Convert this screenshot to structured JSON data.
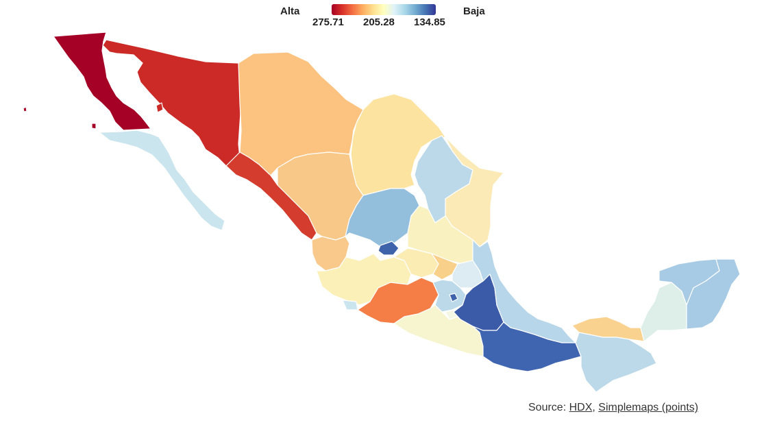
{
  "legend": {
    "high_label": "Alta",
    "low_label": "Baja",
    "ticks": [
      "275.71",
      "205.28",
      "134.85"
    ],
    "colors": [
      "#a50026",
      "#d73027",
      "#f46d43",
      "#fdae61",
      "#fee090",
      "#ffffbf",
      "#e0f3f8",
      "#abd9e9",
      "#74add1",
      "#4575b4",
      "#313695"
    ]
  },
  "source": {
    "prefix": "Source: ",
    "link1": "HDX",
    "separator": ", ",
    "link2": "Simplemaps (points)"
  },
  "chart_data": {
    "type": "choropleth",
    "scale": {
      "min": 134.85,
      "mid": 205.28,
      "max": 275.71,
      "reversed": true
    },
    "regions": [
      {
        "id": "baja-california",
        "color": "#a50026"
      },
      {
        "id": "sonora",
        "color": "#cc2a27"
      },
      {
        "id": "sinaloa",
        "color": "#d43d2d"
      },
      {
        "id": "chihuahua",
        "color": "#fbc37f"
      },
      {
        "id": "durango",
        "color": "#f8c888"
      },
      {
        "id": "coahuila",
        "color": "#fde3a0"
      },
      {
        "id": "nuevo-leon",
        "color": "#bcd9ea"
      },
      {
        "id": "tamaulipas",
        "color": "#fbeab5"
      },
      {
        "id": "baja-california-sur",
        "color": "#cbe5ef"
      },
      {
        "id": "zacatecas",
        "color": "#93bfdd"
      },
      {
        "id": "aguascalientes",
        "color": "#3e63aa"
      },
      {
        "id": "san-luis-potosi",
        "color": "#faf1c0"
      },
      {
        "id": "nayarit",
        "color": "#f9c98b"
      },
      {
        "id": "jalisco",
        "color": "#fbf0b8"
      },
      {
        "id": "colima",
        "color": "#cbe5ef"
      },
      {
        "id": "guanajuato",
        "color": "#fbecb4"
      },
      {
        "id": "queretaro",
        "color": "#f8d089"
      },
      {
        "id": "michoacan",
        "color": "#f47e45"
      },
      {
        "id": "hidalgo",
        "color": "#dcecf2"
      },
      {
        "id": "mexico-state",
        "color": "#bcd9ea"
      },
      {
        "id": "cdmx",
        "color": "#3e63aa"
      },
      {
        "id": "tlaxcala",
        "color": "#3a4f9c"
      },
      {
        "id": "morelos",
        "color": "#f4f7e4"
      },
      {
        "id": "puebla",
        "color": "#3b5ba8"
      },
      {
        "id": "veracruz",
        "color": "#b7d6e9"
      },
      {
        "id": "guerrero",
        "color": "#f7f5cf"
      },
      {
        "id": "oaxaca",
        "color": "#4065b0"
      },
      {
        "id": "tabasco",
        "color": "#f9d28f"
      },
      {
        "id": "chiapas",
        "color": "#bcd9ea"
      },
      {
        "id": "campeche",
        "color": "#ddefe8"
      },
      {
        "id": "yucatan",
        "color": "#a7cbe4"
      },
      {
        "id": "quintana-roo",
        "color": "#a7cbe4"
      }
    ]
  }
}
